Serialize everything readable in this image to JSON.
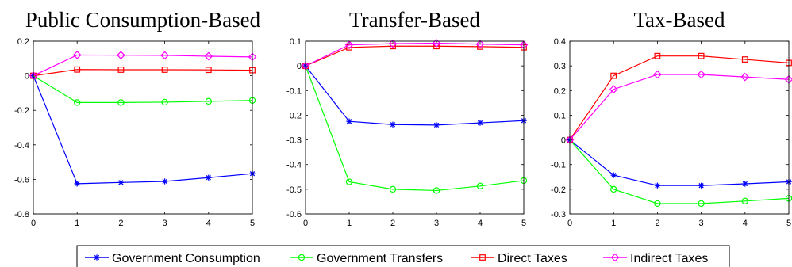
{
  "chart_data": [
    {
      "type": "line",
      "title": "Public Consumption-Based",
      "x": [
        0,
        1,
        2,
        3,
        4,
        5
      ],
      "xlim": [
        0,
        5
      ],
      "ylim": [
        -0.8,
        0.2
      ],
      "xticks": [
        0,
        1,
        2,
        3,
        4,
        5
      ],
      "yticks": [
        -0.8,
        -0.6,
        -0.4,
        -0.2,
        0,
        0.2
      ],
      "yticklabels": [
        "-0.8",
        "-0.6",
        "-0.4",
        "-0.2",
        "0",
        "0.2"
      ],
      "series": [
        {
          "name": "Government Consumption",
          "values": [
            0,
            -0.625,
            -0.618,
            -0.612,
            -0.59,
            -0.567
          ]
        },
        {
          "name": "Government Transfers",
          "values": [
            0,
            -0.155,
            -0.155,
            -0.153,
            -0.148,
            -0.143
          ]
        },
        {
          "name": "Direct Taxes",
          "values": [
            0,
            0.036,
            0.035,
            0.035,
            0.034,
            0.032
          ]
        },
        {
          "name": "Indirect Taxes",
          "values": [
            0,
            0.12,
            0.119,
            0.118,
            0.113,
            0.109
          ]
        }
      ]
    },
    {
      "type": "line",
      "title": "Transfer-Based",
      "x": [
        0,
        1,
        2,
        3,
        4,
        5
      ],
      "xlim": [
        0,
        5
      ],
      "ylim": [
        -0.6,
        0.1
      ],
      "xticks": [
        0,
        1,
        2,
        3,
        4,
        5
      ],
      "yticks": [
        -0.6,
        -0.5,
        -0.4,
        -0.3,
        -0.2,
        -0.1,
        0,
        0.1
      ],
      "yticklabels": [
        "-0.6",
        "-0.5",
        "-0.4",
        "-0.3",
        "-0.2",
        "-0.1",
        "0",
        "0.1"
      ],
      "series": [
        {
          "name": "Government Consumption",
          "values": [
            0,
            -0.225,
            -0.238,
            -0.24,
            -0.231,
            -0.222
          ]
        },
        {
          "name": "Government Transfers",
          "values": [
            0,
            -0.47,
            -0.5,
            -0.505,
            -0.487,
            -0.465
          ]
        },
        {
          "name": "Direct Taxes",
          "values": [
            0,
            0.075,
            0.08,
            0.08,
            0.078,
            0.075
          ]
        },
        {
          "name": "Indirect Taxes",
          "values": [
            0,
            0.085,
            0.09,
            0.092,
            0.088,
            0.085
          ]
        }
      ]
    },
    {
      "type": "line",
      "title": "Tax-Based",
      "x": [
        0,
        1,
        2,
        3,
        4,
        5
      ],
      "xlim": [
        0,
        5
      ],
      "ylim": [
        -0.3,
        0.4
      ],
      "xticks": [
        0,
        1,
        2,
        3,
        4,
        5
      ],
      "yticks": [
        -0.3,
        -0.2,
        -0.1,
        0,
        0.1,
        0.2,
        0.3,
        0.4
      ],
      "yticklabels": [
        "-0.3",
        "-0.2",
        "-0.1",
        "0",
        "0.1",
        "0.2",
        "0.3",
        "0.4"
      ],
      "series": [
        {
          "name": "Government Consumption",
          "values": [
            0,
            -0.143,
            -0.185,
            -0.185,
            -0.178,
            -0.17
          ]
        },
        {
          "name": "Government Transfers",
          "values": [
            0,
            -0.2,
            -0.258,
            -0.258,
            -0.248,
            -0.237
          ]
        },
        {
          "name": "Direct Taxes",
          "values": [
            0,
            0.26,
            0.34,
            0.34,
            0.326,
            0.312
          ]
        },
        {
          "name": "Indirect Taxes",
          "values": [
            0,
            0.205,
            0.265,
            0.265,
            0.255,
            0.245
          ]
        }
      ]
    }
  ],
  "legend": {
    "placement": "bottom-center",
    "entries": [
      {
        "label": "Government Consumption",
        "color": "#0000ff",
        "marker": "asterisk"
      },
      {
        "label": "Government Transfers",
        "color": "#00ff00",
        "marker": "circle"
      },
      {
        "label": "Direct Taxes",
        "color": "#ff0000",
        "marker": "square"
      },
      {
        "label": "Indirect Taxes",
        "color": "#ff00ff",
        "marker": "diamond"
      }
    ]
  }
}
